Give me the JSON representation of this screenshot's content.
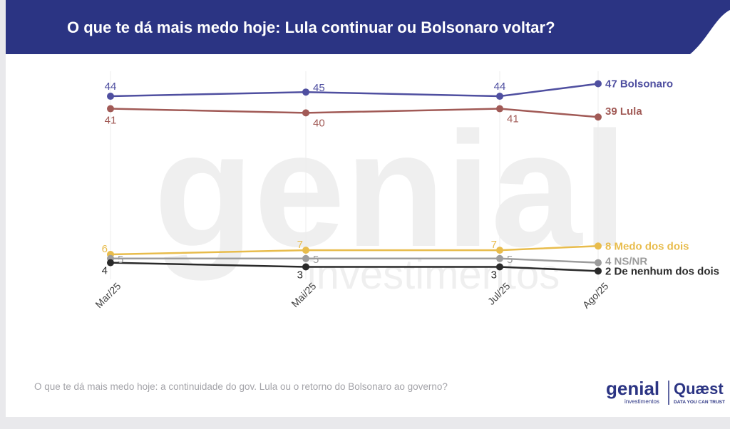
{
  "header": {
    "title": "O que te dá mais medo hoje: Lula continuar ou Bolsonaro voltar?",
    "bg_color": "#2b3483"
  },
  "footnote": "O que te dá mais medo hoje: a continuidade do gov. Lula ou o retorno do Bolsonaro ao governo?",
  "watermark": {
    "word": "genial",
    "subword": "investimentos"
  },
  "logos": {
    "genial": "genial",
    "genial_sub": "investimentos",
    "quaest": "Quæst",
    "quaest_tagline": "DATA YOU CAN TRUST"
  },
  "chart_data": {
    "type": "line",
    "categories": [
      "Mar/25",
      "Mai/25",
      "Jul/25",
      "Ago/25"
    ],
    "ylim": [
      0,
      50
    ],
    "grid": "vertical",
    "series": [
      {
        "name": "Bolsonaro",
        "values": [
          44,
          45,
          44,
          47
        ],
        "labels": [
          "44",
          "45",
          "44",
          "47"
        ],
        "end_label": "47 Bolsonaro",
        "color": "#4f4fa0"
      },
      {
        "name": "Lula",
        "values": [
          41,
          40,
          41,
          39
        ],
        "labels": [
          "41",
          "40",
          "41",
          "39"
        ],
        "end_label": "39 Lula",
        "color": "#a15a56"
      },
      {
        "name": "Medo dos dois",
        "values": [
          6,
          7,
          7,
          8
        ],
        "labels": [
          "6",
          "7",
          "7",
          "8"
        ],
        "end_label": "8 Medo dos dois",
        "color": "#e8bc4c"
      },
      {
        "name": "NS/NR",
        "values": [
          5,
          5,
          5,
          4
        ],
        "labels": [
          "5",
          "5",
          "5",
          "4"
        ],
        "end_label": "4 NS/NR",
        "color": "#9c9c9c"
      },
      {
        "name": "De nenhum dos dois",
        "values": [
          4,
          3,
          3,
          2
        ],
        "labels": [
          "4",
          "3",
          "3",
          "2"
        ],
        "end_label": "2 De nenhum dos dois",
        "color": "#2a2a2a"
      }
    ]
  }
}
